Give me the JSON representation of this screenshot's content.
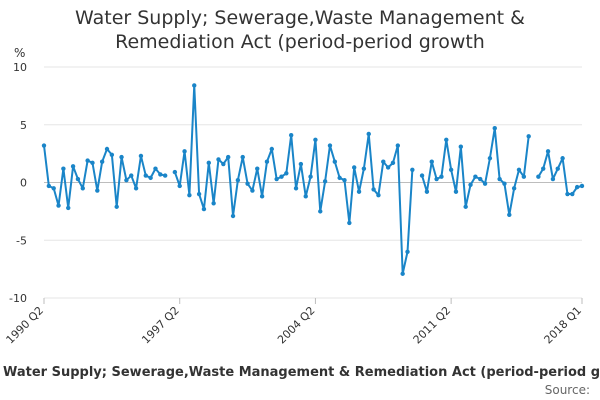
{
  "chart_data": {
    "type": "line",
    "title_lines": [
      "Water Supply; Sewerage,Waste Management &",
      "Remediation Act (period-period growth"
    ],
    "ylabel": "%",
    "ylim": [
      -10,
      10
    ],
    "yticks": [
      10,
      5,
      0,
      -5,
      -10
    ],
    "xtick_labels": [
      {
        "label": "1990 Q2",
        "index": 0
      },
      {
        "label": "1997 Q2",
        "index": 28
      },
      {
        "label": "2004 Q2",
        "index": 56
      },
      {
        "label": "2011 Q2",
        "index": 84
      },
      {
        "label": "2018 Q1",
        "index": 111
      }
    ],
    "n_points": 112,
    "series": [
      {
        "name": "Water Supply; Sewerage, Waste Management & Remediation Act (period-period growth)",
        "color": "#1a85c8",
        "values": [
          3.2,
          -0.3,
          -0.5,
          -2.0,
          1.2,
          -2.2,
          1.4,
          0.3,
          -0.5,
          1.9,
          1.7,
          -0.7,
          1.8,
          2.9,
          2.4,
          -2.1,
          2.2,
          0.2,
          0.6,
          -0.5,
          2.3,
          0.6,
          0.4,
          1.2,
          0.7,
          0.6,
          null,
          0.9,
          -0.3,
          2.7,
          -1.1,
          8.4,
          -1.0,
          -2.3,
          1.7,
          -1.8,
          2.0,
          1.6,
          2.2,
          -2.9,
          0.2,
          2.2,
          -0.1,
          -0.7,
          1.2,
          -1.2,
          1.8,
          2.9,
          0.3,
          0.5,
          0.8,
          4.1,
          -0.5,
          1.6,
          -1.2,
          0.5,
          3.7,
          -2.5,
          0.1,
          3.2,
          1.8,
          0.4,
          0.2,
          -3.5,
          1.3,
          -0.8,
          1.2,
          4.2,
          -0.6,
          -1.1,
          1.8,
          1.3,
          1.7,
          3.2,
          -7.9,
          -6.0,
          1.1,
          null,
          0.6,
          -0.8,
          1.8,
          0.3,
          0.5,
          3.7,
          1.1,
          -0.8,
          3.1,
          -2.1,
          -0.2,
          0.5,
          0.3,
          -0.1,
          2.1,
          4.7,
          0.3,
          -0.1,
          -2.8,
          -0.5,
          1.1,
          0.5,
          4.0,
          null,
          0.5,
          1.2,
          2.7,
          0.3,
          1.2,
          2.1,
          -1.0,
          -1.0,
          -0.4,
          -0.3
        ]
      }
    ]
  },
  "footer": {
    "title": "Water Supply; Sewerage,Waste Management & Remediation Act (period-period grow",
    "source_label": "Source:",
    "source_value": ""
  }
}
